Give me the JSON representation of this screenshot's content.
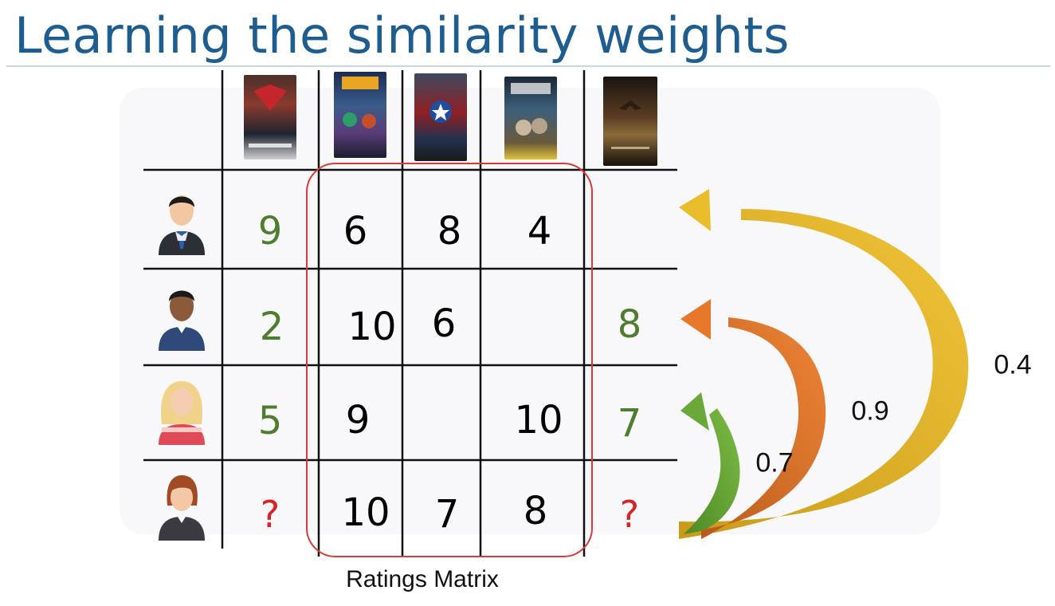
{
  "title": "Learning the similarity weights",
  "caption": "Ratings Matrix",
  "movies": [
    {
      "icon": "movie-poster-1-icon"
    },
    {
      "icon": "movie-poster-2-icon"
    },
    {
      "icon": "movie-poster-3-icon"
    },
    {
      "icon": "movie-poster-4-icon"
    },
    {
      "icon": "movie-poster-5-icon"
    }
  ],
  "users": [
    {
      "icon": "user-man-suit-icon",
      "ratings": [
        "9",
        "6",
        "8",
        "4",
        ""
      ]
    },
    {
      "icon": "user-man-dark-icon",
      "ratings": [
        "2",
        "10",
        "6",
        "",
        "8"
      ]
    },
    {
      "icon": "user-woman-blonde-icon",
      "ratings": [
        "5",
        "9",
        "",
        "10",
        "7"
      ]
    },
    {
      "icon": "user-woman-redhead-icon",
      "ratings": [
        "?",
        "10",
        "7",
        "8",
        "?"
      ]
    }
  ],
  "weights": [
    {
      "label": "0.7",
      "color": "#6aa83a"
    },
    {
      "label": "0.9",
      "color": "#e2742a"
    },
    {
      "label": "0.4",
      "color": "#e8b92e"
    }
  ],
  "colors": {
    "title": "#1d5d8f",
    "target_column": "#4e7d2d",
    "unknown": "#d42424",
    "matrix_highlight": "#d43b3b"
  }
}
